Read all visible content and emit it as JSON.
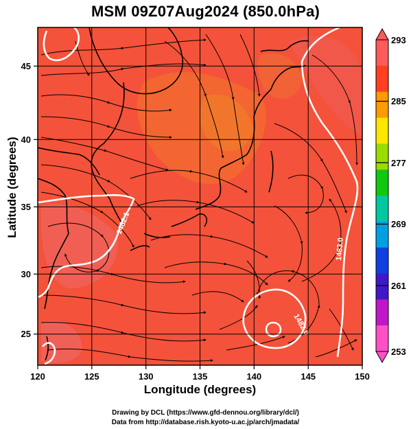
{
  "title": "MSM 09Z07Aug2024 (850.0hPa)",
  "map": {
    "x_axis_label": "Longitude (degrees)",
    "y_axis_label": "Latitude  (degrees)",
    "x_ticks": [
      "120",
      "125",
      "130",
      "135",
      "140",
      "145",
      "150"
    ],
    "y_ticks": [
      "25",
      "30",
      "35",
      "40",
      "45"
    ],
    "lon_range": [
      120,
      150
    ],
    "lat_range": [
      22.4,
      47.6
    ],
    "contour_labels": [
      "1482.1",
      "1482.0",
      "1483.0"
    ],
    "contour_color": "#ffffff",
    "streamline_color": "#000000",
    "field_base_color": "#f4523a"
  },
  "colorbar": {
    "labels": [
      "293",
      "285",
      "277",
      "269",
      "261",
      "253"
    ],
    "colors": [
      "#ff5a5a",
      "#ff3f1f",
      "#ff9a00",
      "#ffe600",
      "#9bdc00",
      "#10c810",
      "#00c8a0",
      "#00a0e0",
      "#1040e0",
      "#4018c8",
      "#c018c8",
      "#ff50c8"
    ]
  },
  "credits": {
    "line1": "Drawing by DCL (https://www.gfd-dennou.org/library/dcl/)",
    "line2": "Data from http://database.rish.kyoto-u.ac.jp/arch/jmadata/"
  }
}
